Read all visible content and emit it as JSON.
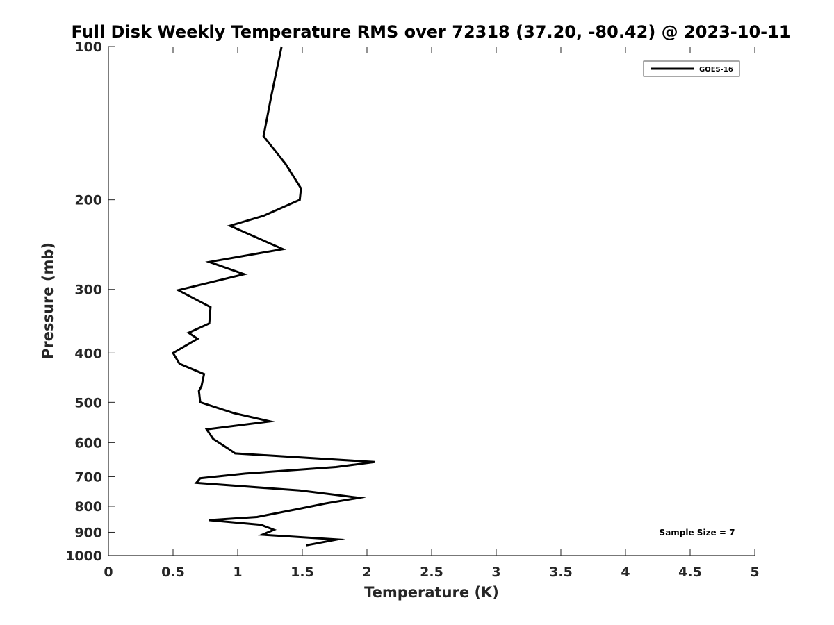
{
  "chart_data": {
    "type": "line",
    "title": "Full Disk Weekly Temperature RMS over 72318 (37.20, -80.42) @ 2023-10-11",
    "xlabel": "Temperature (K)",
    "ylabel": "Pressure (mb)",
    "xlim": [
      0,
      5
    ],
    "ylim": [
      100,
      1000
    ],
    "y_scale": "log",
    "y_reversed": true,
    "x_ticks": [
      0,
      0.5,
      1,
      1.5,
      2,
      2.5,
      3,
      3.5,
      4,
      4.5,
      5
    ],
    "x_tick_labels": [
      "0",
      "0.5",
      "1",
      "1.5",
      "2",
      "2.5",
      "3",
      "3.5",
      "4",
      "4.5",
      "5"
    ],
    "y_ticks": [
      100,
      200,
      300,
      400,
      500,
      600,
      700,
      800,
      900,
      1000
    ],
    "y_tick_labels": [
      "100",
      "200",
      "300",
      "400",
      "500",
      "600",
      "700",
      "800",
      "900",
      "1000"
    ],
    "grid": false,
    "legend_position": "top-right",
    "series": [
      {
        "name": "GOES-16",
        "color": "#000000",
        "points": [
          [
            1.34,
            100
          ],
          [
            1.26,
            125
          ],
          [
            1.2,
            150
          ],
          [
            1.37,
            170
          ],
          [
            1.49,
            190
          ],
          [
            1.48,
            200
          ],
          [
            1.2,
            215
          ],
          [
            0.94,
            225
          ],
          [
            1.35,
            250
          ],
          [
            0.78,
            265
          ],
          [
            1.05,
            280
          ],
          [
            0.54,
            301
          ],
          [
            0.79,
            325
          ],
          [
            0.78,
            350
          ],
          [
            0.62,
            365
          ],
          [
            0.69,
            375
          ],
          [
            0.5,
            400
          ],
          [
            0.55,
            420
          ],
          [
            0.74,
            440
          ],
          [
            0.72,
            465
          ],
          [
            0.7,
            475
          ],
          [
            0.71,
            500
          ],
          [
            0.97,
            525
          ],
          [
            1.25,
            545
          ],
          [
            0.76,
            565
          ],
          [
            0.81,
            590
          ],
          [
            0.92,
            615
          ],
          [
            0.98,
            630
          ],
          [
            2.06,
            655
          ],
          [
            1.76,
            670
          ],
          [
            1.06,
            690
          ],
          [
            0.71,
            705
          ],
          [
            0.68,
            720
          ],
          [
            1.48,
            745
          ],
          [
            1.94,
            770
          ],
          [
            1.68,
            790
          ],
          [
            1.47,
            810
          ],
          [
            1.15,
            840
          ],
          [
            0.78,
            852
          ],
          [
            1.18,
            870
          ],
          [
            1.28,
            890
          ],
          [
            1.19,
            910
          ],
          [
            1.77,
            930
          ],
          [
            1.53,
            955
          ]
        ]
      }
    ],
    "annotations": [
      {
        "text": "Sample Size = 7",
        "position": "bottom-right"
      }
    ]
  }
}
